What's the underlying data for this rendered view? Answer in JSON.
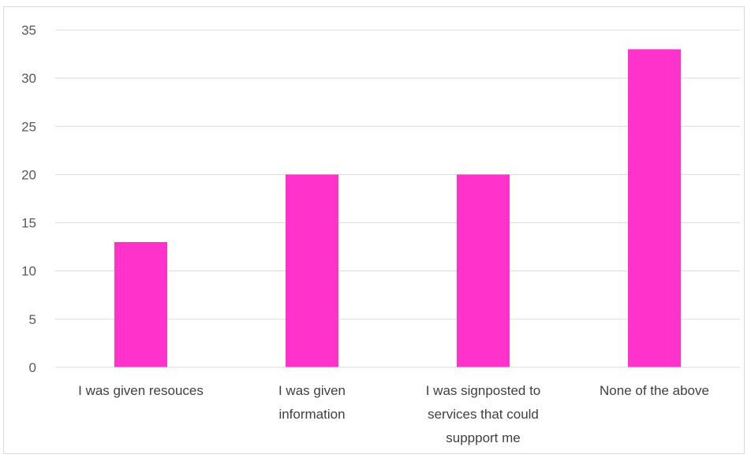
{
  "chart_data": {
    "type": "bar",
    "title": "",
    "xlabel": "",
    "ylabel": "",
    "categories": [
      [
        "I was given resouces"
      ],
      [
        "I was given",
        "information"
      ],
      [
        "I was signposted to",
        "services that could",
        "suppport me"
      ],
      [
        "None of the above"
      ]
    ],
    "values": [
      13,
      20,
      20,
      33
    ],
    "ylim": [
      0,
      35
    ],
    "yticks": [
      0,
      5,
      10,
      15,
      20,
      25,
      30,
      35
    ],
    "grid": true,
    "legend": "none",
    "bar_color": "#ff33cc",
    "grid_color": "#d9d9d9"
  }
}
